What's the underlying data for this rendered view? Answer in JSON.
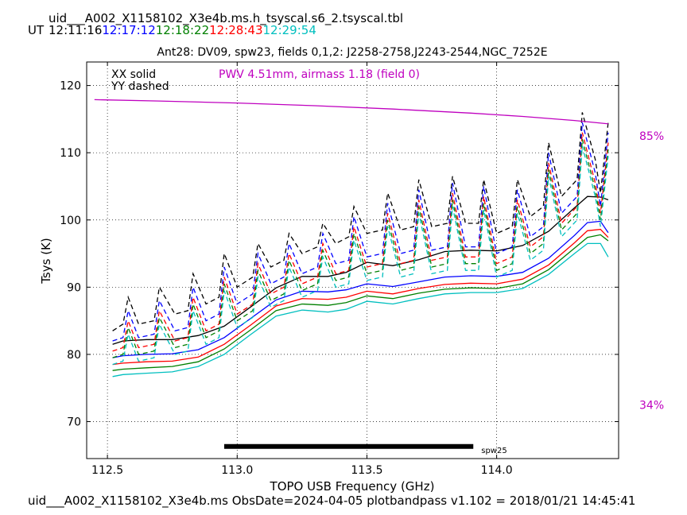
{
  "header": {
    "table_name": "uid___A002_X1158102_X3e4b.ms.h_tsyscal.s6_2.tsyscal.tbl",
    "ut_label": "UT",
    "times": [
      {
        "text": "12:11:16",
        "color": "#000000"
      },
      {
        "text": "12:17:12",
        "color": "#0000ff"
      },
      {
        "text": "12:18:22",
        "color": "#008000"
      },
      {
        "text": "12:28:43",
        "color": "#ff0000"
      },
      {
        "text": "12:29:54",
        "color": "#00bfbf"
      }
    ]
  },
  "footer": {
    "text": "uid___A002_X1158102_X3e4b.ms  ObsDate=2024-04-05   plotbandpass v1.102 = 2018/01/21 14:45:41"
  },
  "chart_data": {
    "type": "line",
    "title": "Ant28: DV09,  spw23,  fields 0,1,2: J2258-2758,J2243-2544,NGC_7252E",
    "xlabel": "TOPO USB Frequency (GHz)",
    "ylabel": "Tsys (K)",
    "xlim": [
      112.42,
      114.47
    ],
    "ylim": [
      64.5,
      123.5
    ],
    "xticks": [
      112.5,
      113.0,
      113.5,
      114.0
    ],
    "xtick_labels": [
      "112.5",
      "113.0",
      "113.5",
      "114.0"
    ],
    "yticks": [
      70,
      80,
      90,
      100,
      110,
      120
    ],
    "ytick_labels": [
      "70",
      "80",
      "90",
      "100",
      "110",
      "120"
    ],
    "grid": true,
    "legend": {
      "xx": "XX solid",
      "yy": "YY dashed"
    },
    "pwv_text": "PWV 4.51mm, airmass 1.18 (field 0)",
    "pwv_color": "#bf00bf",
    "right_labels": [
      {
        "text": "85%",
        "y": 112.5
      },
      {
        "text": "34%",
        "y": 72.5
      }
    ],
    "spw_bar": {
      "label": "spw25",
      "x_start": 112.95,
      "x_end": 113.91,
      "y": 66.3
    },
    "transmission": {
      "color": "#bf00bf",
      "x": [
        112.45,
        112.7,
        113.0,
        113.3,
        113.6,
        113.9,
        114.1,
        114.3,
        114.43
      ],
      "y": [
        117.9,
        117.7,
        117.4,
        117.0,
        116.5,
        115.9,
        115.4,
        114.8,
        114.3
      ]
    },
    "series": [
      {
        "pol": "XX",
        "color": "#000000",
        "style": "solid",
        "x": [
          112.52,
          112.56,
          112.65,
          112.75,
          112.85,
          112.95,
          113.05,
          113.15,
          113.25,
          113.35,
          113.42,
          113.5,
          113.6,
          113.7,
          113.8,
          113.9,
          114.0,
          114.1,
          114.2,
          114.3,
          114.35,
          114.4,
          114.43
        ],
        "y": [
          81.5,
          82.0,
          82.2,
          82.2,
          82.8,
          84.2,
          87.0,
          89.9,
          91.6,
          91.6,
          92.2,
          93.7,
          93.2,
          94.1,
          95.3,
          95.5,
          95.4,
          96.2,
          98.3,
          101.8,
          103.5,
          103.4,
          103.0
        ]
      },
      {
        "pol": "XX",
        "color": "#0000ff",
        "style": "solid",
        "x": [
          112.52,
          112.56,
          112.65,
          112.75,
          112.85,
          112.95,
          113.05,
          113.15,
          113.25,
          113.35,
          113.42,
          113.5,
          113.6,
          113.7,
          113.8,
          113.9,
          114.0,
          114.1,
          114.2,
          114.3,
          114.35,
          114.4,
          114.43
        ],
        "y": [
          79.5,
          79.8,
          80.0,
          80.1,
          80.7,
          82.5,
          85.3,
          88.1,
          89.4,
          89.3,
          89.6,
          90.5,
          90.1,
          90.8,
          91.5,
          91.7,
          91.6,
          92.2,
          94.3,
          97.7,
          99.6,
          99.8,
          98.1
        ]
      },
      {
        "pol": "XX",
        "color": "#ff0000",
        "style": "solid",
        "x": [
          112.52,
          112.56,
          112.65,
          112.75,
          112.85,
          112.95,
          113.05,
          113.15,
          113.25,
          113.35,
          113.42,
          113.5,
          113.6,
          113.7,
          113.8,
          113.9,
          114.0,
          114.1,
          114.2,
          114.3,
          114.35,
          114.4,
          114.43
        ],
        "y": [
          78.5,
          78.7,
          78.9,
          79.0,
          79.6,
          81.5,
          84.3,
          87.2,
          88.3,
          88.2,
          88.5,
          89.4,
          89.0,
          89.8,
          90.4,
          90.6,
          90.5,
          91.2,
          93.3,
          96.6,
          98.4,
          98.6,
          97.4
        ]
      },
      {
        "pol": "XX",
        "color": "#008000",
        "style": "solid",
        "x": [
          112.52,
          112.56,
          112.65,
          112.75,
          112.85,
          112.95,
          113.05,
          113.15,
          113.25,
          113.35,
          113.42,
          113.5,
          113.6,
          113.7,
          113.8,
          113.9,
          114.0,
          114.1,
          114.2,
          114.3,
          114.35,
          114.4,
          114.43
        ],
        "y": [
          77.6,
          77.8,
          78.0,
          78.2,
          78.9,
          80.8,
          83.6,
          86.5,
          87.5,
          87.3,
          87.7,
          88.7,
          88.3,
          89.1,
          89.7,
          89.9,
          89.8,
          90.5,
          92.6,
          95.8,
          97.4,
          97.8,
          96.9
        ]
      },
      {
        "pol": "XX",
        "color": "#00bfbf",
        "style": "solid",
        "x": [
          112.52,
          112.56,
          112.65,
          112.75,
          112.85,
          112.95,
          113.05,
          113.15,
          113.25,
          113.35,
          113.42,
          113.5,
          113.6,
          113.7,
          113.8,
          113.9,
          114.0,
          114.1,
          114.2,
          114.3,
          114.35,
          114.4,
          114.43
        ],
        "y": [
          76.7,
          77.0,
          77.2,
          77.4,
          78.2,
          80.0,
          82.9,
          85.7,
          86.6,
          86.3,
          86.7,
          87.9,
          87.5,
          88.3,
          89.0,
          89.2,
          89.2,
          89.8,
          91.9,
          95.0,
          96.5,
          96.5,
          94.5
        ]
      },
      {
        "pol": "YY",
        "color": "#000000",
        "style": "dashed",
        "x": [
          112.52,
          112.56,
          112.58,
          112.62,
          112.68,
          112.7,
          112.76,
          112.81,
          112.83,
          112.88,
          112.93,
          112.95,
          113.0,
          113.06,
          113.08,
          113.13,
          113.18,
          113.2,
          113.25,
          113.31,
          113.33,
          113.38,
          113.43,
          113.45,
          113.5,
          113.56,
          113.58,
          113.63,
          113.68,
          113.7,
          113.75,
          113.81,
          113.83,
          113.88,
          113.93,
          113.95,
          114.0,
          114.06,
          114.08,
          114.13,
          114.18,
          114.2,
          114.25,
          114.31,
          114.33,
          114.38,
          114.4,
          114.43
        ],
        "y": [
          83.5,
          84.5,
          88.5,
          84.5,
          85.0,
          90.0,
          86.0,
          86.5,
          92.0,
          87.5,
          88.5,
          95.0,
          90.0,
          91.5,
          96.5,
          93.0,
          94.0,
          98.0,
          95.0,
          96.0,
          99.5,
          96.5,
          97.5,
          102.0,
          98.0,
          98.5,
          104.0,
          98.5,
          99.0,
          106.0,
          99.0,
          99.5,
          106.5,
          99.5,
          99.5,
          106.0,
          98.0,
          99.0,
          106.0,
          100.5,
          102.0,
          111.5,
          103.5,
          106.0,
          116.0,
          109.0,
          104.0,
          114.5
        ]
      },
      {
        "pol": "YY",
        "color": "#0000ff",
        "style": "dashed",
        "x": [
          112.52,
          112.56,
          112.58,
          112.62,
          112.68,
          112.7,
          112.76,
          112.81,
          112.83,
          112.88,
          112.93,
          112.95,
          113.0,
          113.06,
          113.08,
          113.13,
          113.18,
          113.2,
          113.25,
          113.31,
          113.33,
          113.38,
          113.43,
          113.45,
          113.5,
          113.56,
          113.58,
          113.63,
          113.68,
          113.7,
          113.75,
          113.81,
          113.83,
          113.88,
          113.93,
          113.95,
          114.0,
          114.06,
          114.08,
          114.13,
          114.18,
          114.2,
          114.25,
          114.31,
          114.33,
          114.38,
          114.4,
          114.43
        ],
        "y": [
          82.0,
          82.5,
          86.5,
          82.5,
          83.0,
          88.0,
          83.5,
          84.0,
          90.0,
          85.0,
          86.0,
          93.0,
          87.5,
          89.0,
          95.0,
          90.5,
          91.5,
          96.5,
          92.0,
          93.0,
          98.0,
          93.5,
          94.0,
          100.5,
          94.5,
          95.0,
          102.5,
          95.0,
          95.5,
          104.5,
          95.5,
          96.0,
          105.5,
          96.0,
          96.0,
          105.0,
          95.0,
          96.0,
          104.5,
          97.5,
          99.0,
          110.0,
          101.0,
          103.5,
          114.5,
          107.0,
          102.0,
          113.0
        ]
      },
      {
        "pol": "YY",
        "color": "#ff0000",
        "style": "dashed",
        "x": [
          112.52,
          112.56,
          112.58,
          112.62,
          112.68,
          112.7,
          112.76,
          112.81,
          112.83,
          112.88,
          112.93,
          112.95,
          113.0,
          113.06,
          113.08,
          113.13,
          113.18,
          113.2,
          113.25,
          113.31,
          113.33,
          113.38,
          113.43,
          113.45,
          113.5,
          113.56,
          113.58,
          113.63,
          113.68,
          113.7,
          113.75,
          113.81,
          113.83,
          113.88,
          113.93,
          113.95,
          114.0,
          114.06,
          114.08,
          114.13,
          114.18,
          114.2,
          114.25,
          114.31,
          114.33,
          114.38,
          114.4,
          114.43
        ],
        "y": [
          80.5,
          81.0,
          85.0,
          81.0,
          81.5,
          86.5,
          82.0,
          82.5,
          88.5,
          83.5,
          84.5,
          91.5,
          86.0,
          87.5,
          93.5,
          89.0,
          90.0,
          95.0,
          90.5,
          91.5,
          96.5,
          92.0,
          92.5,
          99.0,
          93.0,
          93.5,
          101.0,
          93.5,
          94.0,
          103.0,
          94.0,
          94.5,
          104.0,
          94.5,
          94.5,
          103.5,
          93.5,
          94.5,
          103.0,
          96.0,
          97.5,
          108.5,
          99.5,
          102.0,
          113.0,
          105.5,
          101.0,
          111.5
        ]
      },
      {
        "pol": "YY",
        "color": "#008000",
        "style": "dashed",
        "x": [
          112.52,
          112.56,
          112.58,
          112.62,
          112.68,
          112.7,
          112.76,
          112.81,
          112.83,
          112.88,
          112.93,
          112.95,
          113.0,
          113.06,
          113.08,
          113.13,
          113.18,
          113.2,
          113.25,
          113.31,
          113.33,
          113.38,
          113.43,
          113.45,
          113.5,
          113.56,
          113.58,
          113.63,
          113.68,
          113.7,
          113.75,
          113.81,
          113.83,
          113.88,
          113.93,
          113.95,
          114.0,
          114.06,
          114.08,
          114.13,
          114.18,
          114.2,
          114.25,
          114.31,
          114.33,
          114.38,
          114.4,
          114.43
        ],
        "y": [
          79.5,
          80.0,
          84.0,
          80.0,
          80.5,
          85.5,
          81.0,
          81.5,
          87.5,
          82.5,
          83.5,
          90.5,
          85.0,
          86.5,
          92.5,
          88.0,
          89.0,
          94.0,
          89.5,
          90.5,
          95.5,
          91.0,
          91.5,
          98.0,
          92.0,
          92.5,
          100.0,
          92.5,
          93.0,
          102.0,
          93.0,
          93.5,
          103.0,
          93.5,
          93.5,
          102.5,
          92.5,
          93.5,
          102.0,
          95.0,
          96.5,
          107.5,
          98.5,
          101.0,
          112.0,
          104.5,
          100.0,
          110.5
        ]
      },
      {
        "pol": "YY",
        "color": "#00bfbf",
        "style": "dashed",
        "x": [
          112.52,
          112.56,
          112.58,
          112.62,
          112.68,
          112.7,
          112.76,
          112.81,
          112.83,
          112.88,
          112.93,
          112.95,
          113.0,
          113.06,
          113.08,
          113.13,
          113.18,
          113.2,
          113.25,
          113.31,
          113.33,
          113.38,
          113.43,
          113.45,
          113.5,
          113.56,
          113.58,
          113.63,
          113.68,
          113.7,
          113.75,
          113.81,
          113.83,
          113.88,
          113.93,
          113.95,
          114.0,
          114.06,
          114.08,
          114.13,
          114.18,
          114.2,
          114.25,
          114.31,
          114.33,
          114.38,
          114.4,
          114.43
        ],
        "y": [
          78.5,
          79.0,
          83.0,
          79.0,
          79.5,
          84.5,
          80.0,
          80.5,
          86.5,
          81.5,
          82.5,
          89.5,
          84.0,
          85.5,
          91.5,
          87.0,
          88.0,
          93.0,
          88.5,
          89.5,
          94.5,
          90.0,
          90.5,
          97.0,
          91.0,
          91.5,
          99.0,
          91.5,
          92.0,
          101.0,
          92.0,
          92.5,
          102.0,
          92.5,
          92.5,
          101.5,
          91.5,
          92.5,
          101.0,
          94.0,
          95.5,
          106.5,
          97.5,
          100.0,
          111.0,
          103.5,
          99.0,
          109.5
        ]
      }
    ]
  }
}
